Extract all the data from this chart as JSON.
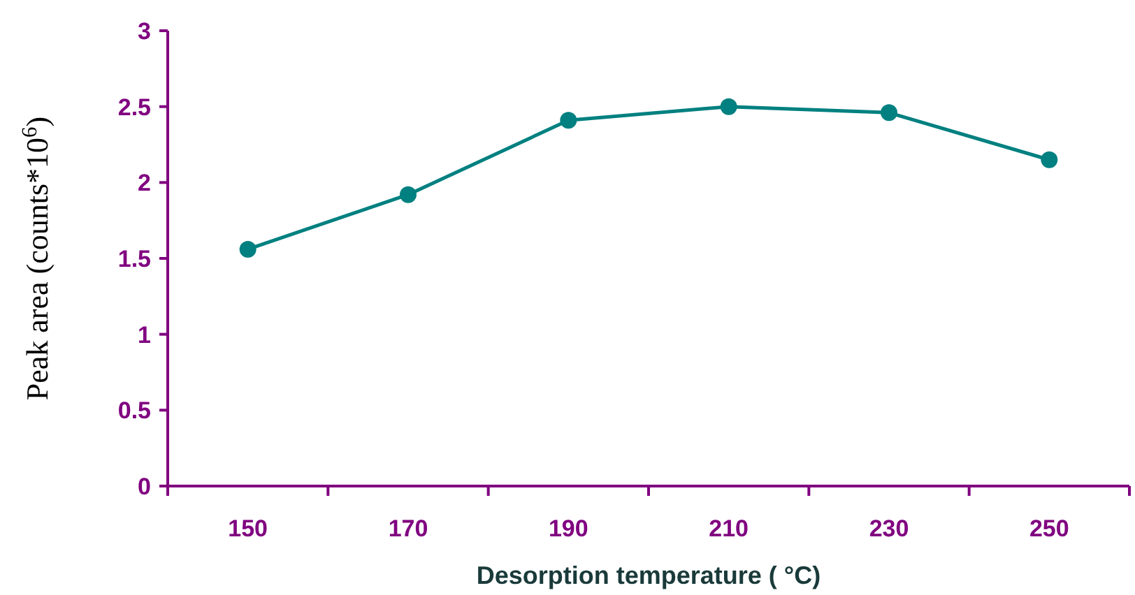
{
  "chart_data": {
    "type": "line",
    "xlabel": "Desorption temperature ( °C)",
    "ylabel": "Peak area (counts*10$^{6}$)",
    "categories": [
      "150",
      "170",
      "190",
      "210",
      "230",
      "250"
    ],
    "series": [
      {
        "color": "#008080",
        "values": [
          1.56,
          1.92,
          2.41,
          2.5,
          2.46,
          2.15
        ]
      }
    ],
    "ylim": [
      0,
      3
    ],
    "yticks": [
      0,
      0.5,
      1,
      1.5,
      2,
      2.5,
      3
    ],
    "marker": "circle",
    "line_style": "solid",
    "grid": false
  }
}
